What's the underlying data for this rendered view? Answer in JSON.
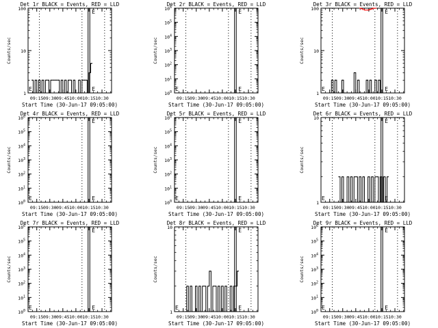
{
  "figure": {
    "common_xlabel": "Start Time (30-Jun-17 09:05:00)",
    "common_ylabel": "Counts/sec",
    "common_xticks": [
      "09:15",
      "09:30",
      "09:45",
      "10:00",
      "10:15",
      "10:30"
    ],
    "colors": {
      "events": "#000000",
      "lld": "#ff0000",
      "background": "#ffffff"
    }
  },
  "chart_data": [
    {
      "type": "line",
      "title": "Det 1r BLACK = Events, RED = LLD",
      "xlabel": "Start Time (30-Jun-17 09:05:00)",
      "ylabel": "Counts/sec",
      "x_unit": "minutes after 09:05:00",
      "xlim": [
        0,
        96
      ],
      "yscale": "log",
      "ylim": [
        1,
        100
      ],
      "yticks": [
        "1",
        "10",
        "100"
      ],
      "xticks": [
        {
          "value": 10,
          "label": "09:15"
        },
        {
          "value": 25,
          "label": "09:30"
        },
        {
          "value": 40,
          "label": "09:45"
        },
        {
          "value": 55,
          "label": "10:00"
        },
        {
          "value": 70,
          "label": "10:15"
        },
        {
          "value": 85,
          "label": "10:30"
        }
      ],
      "dotted_lines": [
        13,
        62,
        88
      ],
      "solid_lines": [
        69,
        71
      ],
      "bracket_labels": [
        "E",
        "L"
      ],
      "series": [
        {
          "name": "Events",
          "color": "#000000",
          "x": [
            4,
            6,
            8,
            10,
            12,
            14,
            16,
            18,
            20,
            22,
            24,
            26,
            28,
            30,
            32,
            34,
            36,
            38,
            40,
            42,
            44,
            46,
            48,
            50,
            52,
            54,
            56,
            58,
            60,
            62,
            64,
            66,
            68,
            70,
            72
          ],
          "values": [
            2,
            1,
            2,
            1,
            2,
            1,
            2,
            1,
            2,
            2,
            1,
            2,
            2,
            2,
            2,
            2,
            1,
            2,
            1,
            2,
            1,
            2,
            2,
            1,
            2,
            1,
            1,
            2,
            1,
            2,
            2,
            2,
            1,
            3,
            5
          ]
        },
        {
          "name": "LLD",
          "color": "#ff0000",
          "x": [],
          "values": []
        }
      ]
    },
    {
      "type": "line",
      "title": "Det 2r BLACK = Events, RED = LLD",
      "xlabel": "Start Time (30-Jun-17 09:05:00)",
      "ylabel": "Counts/sec",
      "x_unit": "minutes after 09:05:00",
      "xlim": [
        0,
        96
      ],
      "yscale": "log",
      "ylim": [
        1,
        1000000
      ],
      "yticks": [
        "10^0",
        "10^1",
        "10^2",
        "10^3",
        "10^4",
        "10^5",
        "10^6"
      ],
      "xticks": [
        {
          "value": 10,
          "label": "09:15"
        },
        {
          "value": 25,
          "label": "09:30"
        },
        {
          "value": 40,
          "label": "09:45"
        },
        {
          "value": 55,
          "label": "10:00"
        },
        {
          "value": 70,
          "label": "10:15"
        },
        {
          "value": 85,
          "label": "10:30"
        }
      ],
      "dotted_lines": [
        13,
        62,
        88
      ],
      "solid_lines": [
        69,
        71
      ],
      "bracket_labels": [
        "E",
        "L"
      ],
      "series": [
        {
          "name": "Events",
          "color": "#000000",
          "x": [],
          "values": []
        },
        {
          "name": "LLD",
          "color": "#ff0000",
          "x": [],
          "values": []
        }
      ]
    },
    {
      "type": "line",
      "title": "Det 3r BLACK = Events, RED = LLD",
      "xlabel": "Start Time (30-Jun-17 09:05:00)",
      "ylabel": "Counts/sec",
      "x_unit": "minutes after 09:05:00",
      "xlim": [
        0,
        96
      ],
      "yscale": "log",
      "ylim": [
        1,
        100
      ],
      "yticks": [
        "1",
        "10",
        "100"
      ],
      "xticks": [
        {
          "value": 10,
          "label": "09:15"
        },
        {
          "value": 25,
          "label": "09:30"
        },
        {
          "value": 40,
          "label": "09:45"
        },
        {
          "value": 55,
          "label": "10:00"
        },
        {
          "value": 70,
          "label": "10:15"
        },
        {
          "value": 85,
          "label": "10:30"
        }
      ],
      "dotted_lines": [
        13,
        62,
        88
      ],
      "solid_lines": [
        69,
        71
      ],
      "bracket_labels": [
        "E",
        "L"
      ],
      "series": [
        {
          "name": "Events",
          "color": "#000000",
          "x": [
            10,
            12,
            14,
            16,
            18,
            20,
            22,
            24,
            26,
            28,
            30,
            32,
            34,
            36,
            38,
            40,
            42,
            44,
            46,
            48,
            50,
            52,
            54,
            56,
            58,
            60,
            62,
            64,
            66,
            68
          ],
          "values": [
            1,
            2,
            1,
            2,
            1,
            1,
            1,
            2,
            1,
            1,
            1,
            1,
            1,
            1,
            3,
            1,
            2,
            1,
            1,
            1,
            1,
            2,
            1,
            2,
            1,
            1,
            2,
            1,
            2,
            1
          ]
        },
        {
          "name": "LLD",
          "color": "#ff0000",
          "x": [
            44,
            46,
            48,
            50,
            52,
            54,
            56,
            58,
            60,
            62
          ],
          "values": [
            100,
            97,
            93,
            90,
            90,
            91,
            94,
            97,
            100,
            100
          ]
        }
      ]
    },
    {
      "type": "line",
      "title": "Det 4r BLACK = Events, RED = LLD",
      "xlabel": "Start Time (30-Jun-17 09:05:00)",
      "ylabel": "Counts/sec",
      "x_unit": "minutes after 09:05:00",
      "xlim": [
        0,
        96
      ],
      "yscale": "log",
      "ylim": [
        1,
        1000000
      ],
      "yticks": [
        "10^0",
        "10^1",
        "10^2",
        "10^3",
        "10^4",
        "10^5",
        "10^6"
      ],
      "xticks": [
        {
          "value": 10,
          "label": "09:15"
        },
        {
          "value": 25,
          "label": "09:30"
        },
        {
          "value": 40,
          "label": "09:45"
        },
        {
          "value": 55,
          "label": "10:00"
        },
        {
          "value": 70,
          "label": "10:15"
        },
        {
          "value": 85,
          "label": "10:30"
        }
      ],
      "dotted_lines": [
        13,
        62,
        88
      ],
      "solid_lines": [
        69,
        71
      ],
      "bracket_labels": [
        "E",
        "L"
      ],
      "series": [
        {
          "name": "Events",
          "color": "#000000",
          "x": [],
          "values": []
        },
        {
          "name": "LLD",
          "color": "#ff0000",
          "x": [],
          "values": []
        }
      ]
    },
    {
      "type": "line",
      "title": "Det 5r BLACK = Events, RED = LLD",
      "xlabel": "Start Time (30-Jun-17 09:05:00)",
      "ylabel": "Counts/sec",
      "x_unit": "minutes after 09:05:00",
      "xlim": [
        0,
        96
      ],
      "yscale": "log",
      "ylim": [
        1,
        1000000
      ],
      "yticks": [
        "10^0",
        "10^1",
        "10^2",
        "10^3",
        "10^4",
        "10^5",
        "10^6"
      ],
      "xticks": [
        {
          "value": 10,
          "label": "09:15"
        },
        {
          "value": 25,
          "label": "09:30"
        },
        {
          "value": 40,
          "label": "09:45"
        },
        {
          "value": 55,
          "label": "10:00"
        },
        {
          "value": 70,
          "label": "10:15"
        },
        {
          "value": 85,
          "label": "10:30"
        }
      ],
      "dotted_lines": [
        13,
        62,
        88
      ],
      "solid_lines": [
        69,
        71
      ],
      "bracket_labels": [
        "E",
        "L"
      ],
      "series": [
        {
          "name": "Events",
          "color": "#000000",
          "x": [],
          "values": []
        },
        {
          "name": "LLD",
          "color": "#ff0000",
          "x": [],
          "values": []
        }
      ]
    },
    {
      "type": "line",
      "title": "Det 6r BLACK = Events, RED = LLD",
      "xlabel": "Start Time (30-Jun-17 09:05:00)",
      "ylabel": "Counts/sec",
      "x_unit": "minutes after 09:05:00",
      "xlim": [
        0,
        96
      ],
      "yscale": "log",
      "ylim": [
        1,
        10
      ],
      "yticks": [
        "1",
        "10"
      ],
      "xticks": [
        {
          "value": 10,
          "label": "09:15"
        },
        {
          "value": 25,
          "label": "09:30"
        },
        {
          "value": 40,
          "label": "09:45"
        },
        {
          "value": 55,
          "label": "10:00"
        },
        {
          "value": 70,
          "label": "10:15"
        },
        {
          "value": 85,
          "label": "10:30"
        }
      ],
      "dotted_lines": [
        13,
        62,
        88
      ],
      "solid_lines": [
        69,
        71
      ],
      "bracket_labels": [
        "E",
        "L"
      ],
      "series": [
        {
          "name": "Events",
          "color": "#000000",
          "x": [
            20,
            22,
            24,
            26,
            28,
            30,
            32,
            34,
            36,
            38,
            40,
            42,
            44,
            46,
            48,
            50,
            52,
            54,
            56,
            58,
            60,
            62,
            64,
            66,
            68,
            70,
            72,
            74,
            76
          ],
          "values": [
            2,
            1,
            2,
            1,
            1,
            2,
            1,
            2,
            1,
            2,
            2,
            1,
            2,
            1,
            2,
            1,
            1,
            2,
            1,
            2,
            1,
            2,
            2,
            1,
            2,
            1,
            2,
            1,
            2
          ]
        },
        {
          "name": "LLD",
          "color": "#ff0000",
          "x": [],
          "values": []
        }
      ]
    },
    {
      "type": "line",
      "title": "Det 7r BLACK = Events, RED = LLD",
      "xlabel": "Start Time (30-Jun-17 09:05:00)",
      "ylabel": "Counts/sec",
      "x_unit": "minutes after 09:05:00",
      "xlim": [
        0,
        96
      ],
      "yscale": "log",
      "ylim": [
        1,
        1000000
      ],
      "yticks": [
        "10^0",
        "10^1",
        "10^2",
        "10^3",
        "10^4",
        "10^5",
        "10^6"
      ],
      "xticks": [
        {
          "value": 10,
          "label": "09:15"
        },
        {
          "value": 25,
          "label": "09:30"
        },
        {
          "value": 40,
          "label": "09:45"
        },
        {
          "value": 55,
          "label": "10:00"
        },
        {
          "value": 70,
          "label": "10:15"
        },
        {
          "value": 85,
          "label": "10:30"
        }
      ],
      "dotted_lines": [
        13,
        62,
        88
      ],
      "solid_lines": [
        69,
        71
      ],
      "bracket_labels": [
        "E",
        "L"
      ],
      "series": [
        {
          "name": "Events",
          "color": "#000000",
          "x": [],
          "values": []
        },
        {
          "name": "LLD",
          "color": "#ff0000",
          "x": [],
          "values": []
        }
      ]
    },
    {
      "type": "line",
      "title": "Det 8r BLACK = Events, RED = LLD",
      "xlabel": "Start Time (30-Jun-17 09:05:00)",
      "ylabel": "Counts/sec",
      "x_unit": "minutes after 09:05:00",
      "xlim": [
        0,
        96
      ],
      "yscale": "log",
      "ylim": [
        1,
        10
      ],
      "yticks": [
        "1",
        "10"
      ],
      "xticks": [
        {
          "value": 10,
          "label": "09:15"
        },
        {
          "value": 25,
          "label": "09:30"
        },
        {
          "value": 40,
          "label": "09:45"
        },
        {
          "value": 55,
          "label": "10:00"
        },
        {
          "value": 70,
          "label": "10:15"
        },
        {
          "value": 85,
          "label": "10:30"
        }
      ],
      "dotted_lines": [
        13,
        62,
        88
      ],
      "solid_lines": [
        69,
        71
      ],
      "bracket_labels": [
        "E",
        "L"
      ],
      "series": [
        {
          "name": "Events",
          "color": "#000000",
          "x": [
            12,
            14,
            16,
            18,
            20,
            22,
            24,
            26,
            28,
            30,
            32,
            34,
            36,
            38,
            40,
            42,
            44,
            46,
            48,
            50,
            52,
            54,
            56,
            58,
            60,
            62,
            64,
            66,
            68,
            70,
            72
          ],
          "values": [
            1,
            2,
            1,
            2,
            1,
            1,
            2,
            1,
            2,
            1,
            2,
            2,
            1,
            2,
            3,
            1,
            2,
            2,
            1,
            2,
            1,
            2,
            1,
            2,
            1,
            1,
            2,
            1,
            2,
            2,
            3
          ]
        },
        {
          "name": "LLD",
          "color": "#ff0000",
          "x": [],
          "values": []
        }
      ]
    },
    {
      "type": "line",
      "title": "Det 9r BLACK = Events, RED = LLD",
      "xlabel": "Start Time (30-Jun-17 09:05:00)",
      "ylabel": "Counts/sec",
      "x_unit": "minutes after 09:05:00",
      "xlim": [
        0,
        96
      ],
      "yscale": "log",
      "ylim": [
        1,
        1000000
      ],
      "yticks": [
        "10^0",
        "10^1",
        "10^2",
        "10^3",
        "10^4",
        "10^5",
        "10^6"
      ],
      "xticks": [
        {
          "value": 10,
          "label": "09:15"
        },
        {
          "value": 25,
          "label": "09:30"
        },
        {
          "value": 40,
          "label": "09:45"
        },
        {
          "value": 55,
          "label": "10:00"
        },
        {
          "value": 70,
          "label": "10:15"
        },
        {
          "value": 85,
          "label": "10:30"
        }
      ],
      "dotted_lines": [
        13,
        62,
        88
      ],
      "solid_lines": [
        69,
        71
      ],
      "bracket_labels": [
        "E",
        "L"
      ],
      "series": [
        {
          "name": "Events",
          "color": "#000000",
          "x": [],
          "values": []
        },
        {
          "name": "LLD",
          "color": "#ff0000",
          "x": [],
          "values": []
        }
      ]
    }
  ]
}
